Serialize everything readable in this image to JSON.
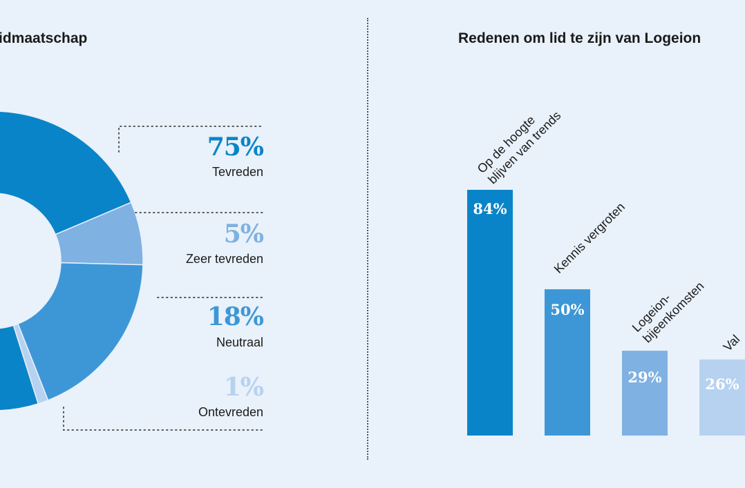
{
  "left": {
    "title": "idmaatschap",
    "slices": [
      {
        "pct": "75%",
        "label": "Tevreden",
        "value": 75,
        "color": "#0a84c8"
      },
      {
        "pct": "5%",
        "label": "Zeer tevreden",
        "value": 5,
        "color": "#7fb1e2"
      },
      {
        "pct": "18%",
        "label": "Neutraal",
        "value": 18,
        "color": "#3d97d7"
      },
      {
        "pct": "1%",
        "label": "Ontevreden",
        "value": 1,
        "color": "#b6d2f0"
      }
    ]
  },
  "right": {
    "title": "Redenen om lid te zijn van Logeion",
    "bars": [
      {
        "value": 84,
        "label_text": "84%",
        "line1": "Op de hoogte",
        "line2": "blijven van trends",
        "color": "#0a84c8"
      },
      {
        "value": 50,
        "label_text": "50%",
        "line1": "Kennis vergroten",
        "line2": "",
        "color": "#3d97d7"
      },
      {
        "value": 29,
        "label_text": "29%",
        "line1": "Logeion-",
        "line2": "bijeenkomsten",
        "color": "#7fb1e2"
      },
      {
        "value": 26,
        "label_text": "26%",
        "line1": "Val",
        "line2": "",
        "color": "#b6d2f0"
      }
    ]
  },
  "chart_data": [
    {
      "type": "pie",
      "title": "idmaatschap",
      "categories": [
        "Tevreden",
        "Zeer tevreden",
        "Neutraal",
        "Ontevreden"
      ],
      "values": [
        75,
        5,
        18,
        1
      ]
    },
    {
      "type": "bar",
      "title": "Redenen om lid te zijn van Logeion",
      "categories": [
        "Op de hoogte blijven van trends",
        "Kennis vergroten",
        "Logeion-bijeenkomsten",
        "Val"
      ],
      "values": [
        84,
        50,
        29,
        26
      ]
    }
  ]
}
